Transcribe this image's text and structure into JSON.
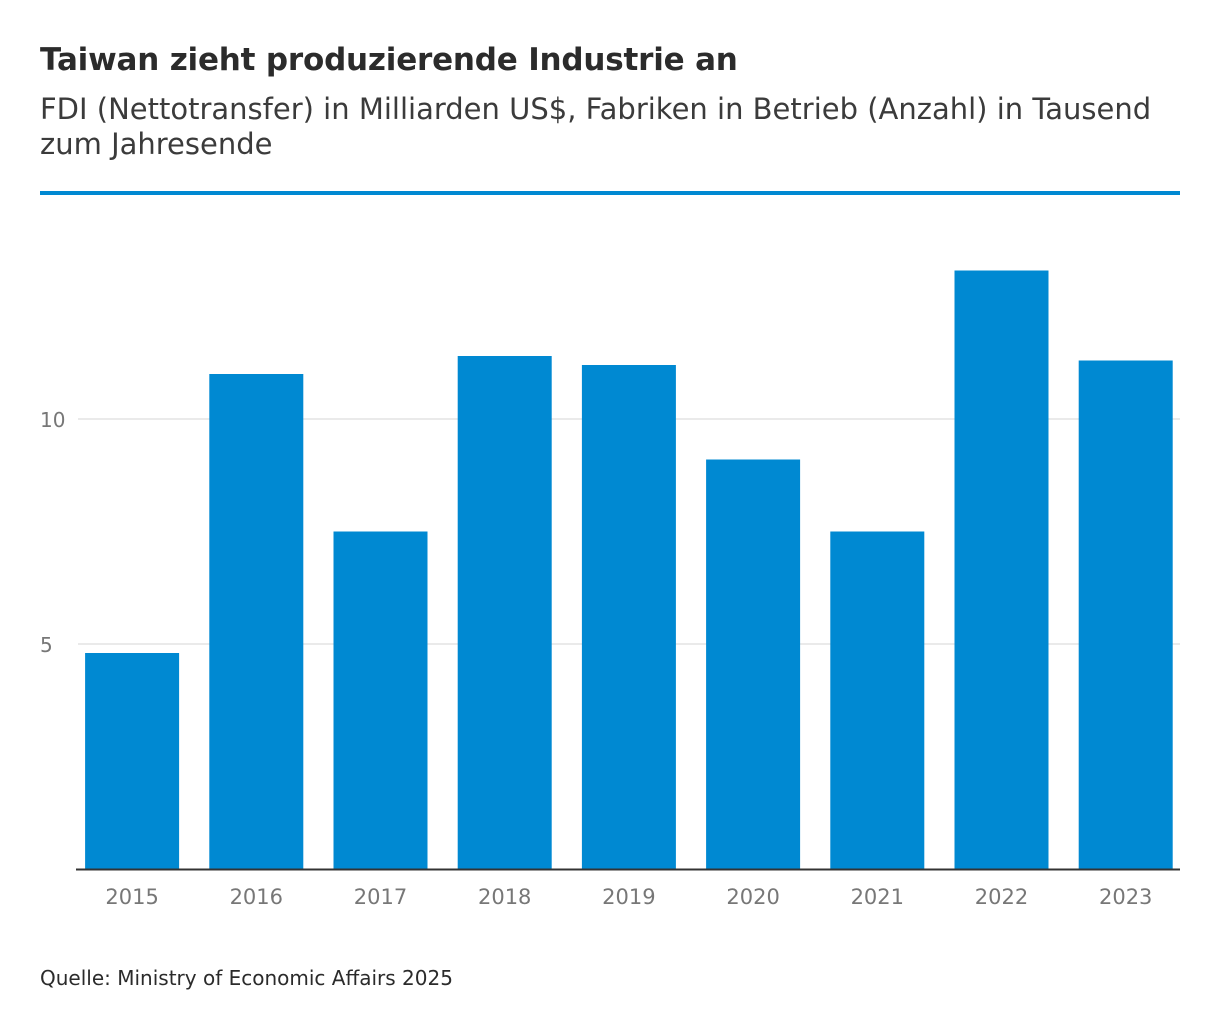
{
  "header": {
    "title": "Taiwan zieht produzierende Industrie an",
    "subtitle": "FDI (Nettotransfer) in Milliarden US$, Fabriken in Betrieb (Anzahl) in Tausend zum Jahresende"
  },
  "footer": {
    "source": "Quelle: Ministry of Economic Affairs 2025"
  },
  "colors": {
    "bar": "#0089d2",
    "accent_rule": "#0089d2",
    "grid": "#dddddd",
    "axis": "#333333",
    "tick_text": "#777777"
  },
  "chart_data": {
    "type": "bar",
    "title": "Taiwan zieht produzierende Industrie an",
    "subtitle": "FDI (Nettotransfer) in Milliarden US$, Fabriken in Betrieb (Anzahl) in Tausend zum Jahresende",
    "xlabel": "",
    "ylabel": "",
    "categories": [
      "2015",
      "2016",
      "2017",
      "2018",
      "2019",
      "2020",
      "2021",
      "2022",
      "2023"
    ],
    "values": [
      4.8,
      11.0,
      7.5,
      11.4,
      11.2,
      9.1,
      7.5,
      13.3,
      11.3
    ],
    "ylim": [
      0,
      14
    ],
    "yticks": [
      5,
      10
    ],
    "ytick_labels": [
      "5",
      "10"
    ],
    "grid": true,
    "legend": "none"
  }
}
